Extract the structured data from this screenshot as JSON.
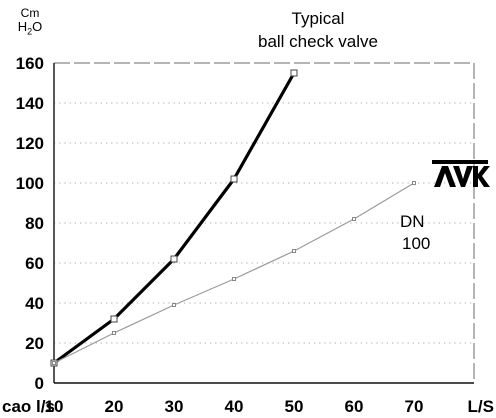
{
  "title_lines": [
    "Typical",
    "ball check valve"
  ],
  "y_unit": {
    "line1": "Cm",
    "line2_main": "H",
    "line2_sub": "2",
    "line2_tail": "O"
  },
  "logo_text": "AVK",
  "series_label_lines": [
    "DN",
    "100"
  ],
  "x_prefix": "cao l/s",
  "x_unit": "L/S",
  "chart_data": {
    "type": "line",
    "title": "Typical ball check valve",
    "xlabel": "L/S",
    "ylabel": "Cm H2O",
    "xlim": [
      10,
      80
    ],
    "ylim": [
      0,
      160
    ],
    "x_ticks": [
      10,
      20,
      30,
      40,
      50,
      60,
      70
    ],
    "x_tick_labels": [
      "10",
      "20",
      "30",
      "40",
      "50",
      "60",
      "70"
    ],
    "y_ticks": [
      0,
      20,
      40,
      60,
      80,
      100,
      120,
      140,
      160
    ],
    "y_tick_labels": [
      "0",
      "20",
      "40",
      "60",
      "80",
      "100",
      "120",
      "140",
      "160"
    ],
    "grid": true,
    "series": [
      {
        "color": "#000000",
        "style": "thick",
        "x": [
          10,
          20,
          30,
          40,
          50
        ],
        "y": [
          10,
          32,
          62,
          102,
          155
        ]
      },
      {
        "name": "DN 100",
        "color": "#9a9a9a",
        "style": "thin",
        "x": [
          10,
          20,
          30,
          40,
          50,
          60,
          70
        ],
        "y": [
          10,
          25,
          39,
          52,
          66,
          82,
          100
        ]
      }
    ]
  }
}
